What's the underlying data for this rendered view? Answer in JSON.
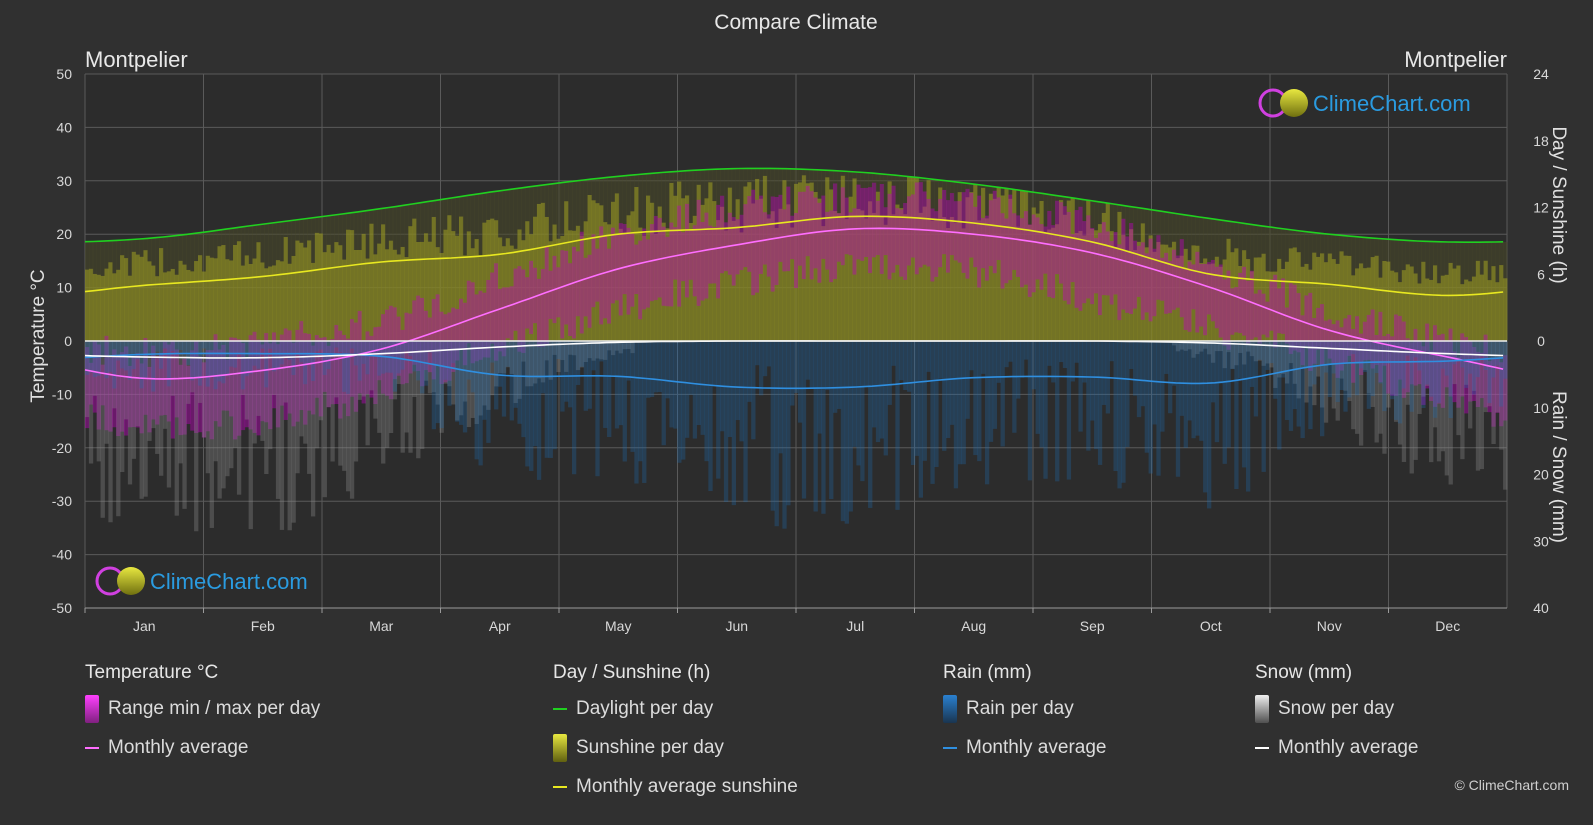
{
  "title": "Compare Climate",
  "location_left": "Montpelier",
  "location_right": "Montpelier",
  "watermark": "ClimeChart.com",
  "copyright": "© ClimeChart.com",
  "colors": {
    "background": "#303030",
    "temp_range": "#c000c0",
    "temp_avg": "#ff6eff",
    "daylight": "#20d020",
    "sunshine_fill": "#a0a020",
    "sunshine_avg": "#e8e820",
    "rain": "#1e6eb4",
    "rain_avg": "#2f8fe0",
    "snow": "#8c8c8c",
    "snow_avg": "#ffffff",
    "brand_blue": "#2a9be0"
  },
  "chart_data": {
    "type": "line",
    "months": [
      "Jan",
      "Feb",
      "Mar",
      "Apr",
      "May",
      "Jun",
      "Jul",
      "Aug",
      "Sep",
      "Oct",
      "Nov",
      "Dec"
    ],
    "left_axis": {
      "label": "Temperature °C",
      "range": [
        -50,
        50
      ],
      "ticks": [
        50,
        40,
        30,
        20,
        10,
        0,
        -10,
        -20,
        -30,
        -40,
        -50
      ]
    },
    "right_axis_top": {
      "label": "Day / Sunshine (h)",
      "range": [
        0,
        24
      ],
      "ticks": [
        24,
        18,
        12,
        6,
        0
      ]
    },
    "right_axis_bottom": {
      "label": "Rain / Snow (mm)",
      "range": [
        0,
        40
      ],
      "ticks": [
        0,
        10,
        20,
        30,
        40
      ]
    },
    "series": [
      {
        "name": "Daylight per day",
        "axis": "hours",
        "values": [
          9.2,
          10.5,
          11.9,
          13.5,
          14.8,
          15.5,
          15.2,
          14.1,
          12.6,
          11.0,
          9.6,
          8.9
        ]
      },
      {
        "name": "Monthly average sunshine",
        "axis": "hours",
        "values": [
          5.0,
          5.8,
          7.1,
          7.8,
          9.6,
          10.2,
          11.2,
          10.6,
          8.9,
          6.0,
          5.1,
          4.1
        ]
      },
      {
        "name": "Temperature monthly average",
        "axis": "temperature",
        "values": [
          -7,
          -5.5,
          -1.5,
          6,
          13.5,
          18,
          21,
          20,
          16.5,
          10,
          2,
          -3
        ]
      },
      {
        "name": "Temperature daily max envelope",
        "axis": "temperature",
        "values": [
          -2,
          0,
          4,
          12,
          20,
          25,
          27,
          26,
          22,
          14,
          6,
          0
        ]
      },
      {
        "name": "Temperature daily min envelope",
        "axis": "temperature",
        "values": [
          -16,
          -15,
          -9,
          -1,
          6,
          11,
          14,
          13,
          8,
          2,
          -4,
          -11
        ]
      },
      {
        "name": "Rain monthly average",
        "axis": "mm",
        "values": [
          2.0,
          1.9,
          2.3,
          5.1,
          5.3,
          6.9,
          6.9,
          5.5,
          5.4,
          6.3,
          3.5,
          3.0
        ]
      },
      {
        "name": "Snow monthly average",
        "axis": "mm",
        "values": [
          2.4,
          2.5,
          1.9,
          0.9,
          0.2,
          0,
          0,
          0,
          0,
          0.3,
          1.1,
          1.9
        ]
      }
    ]
  },
  "legend": {
    "temperature": {
      "heading": "Temperature °C",
      "items": [
        "Range min / max per day",
        "Monthly average"
      ]
    },
    "sunshine": {
      "heading": "Day / Sunshine (h)",
      "items": [
        "Daylight per day",
        "Sunshine per day",
        "Monthly average sunshine"
      ]
    },
    "rain": {
      "heading": "Rain (mm)",
      "items": [
        "Rain per day",
        "Monthly average"
      ]
    },
    "snow": {
      "heading": "Snow (mm)",
      "items": [
        "Snow per day",
        "Monthly average"
      ]
    }
  }
}
